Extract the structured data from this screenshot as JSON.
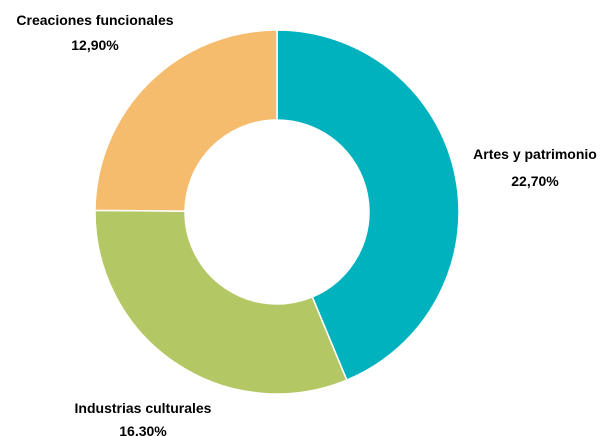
{
  "chart_data": {
    "type": "pie",
    "donut": true,
    "legend": "none",
    "categories": [
      "Artes y patrimonio",
      "Industrias culturales",
      "Creaciones funcionales"
    ],
    "values": [
      22.7,
      16.3,
      12.9
    ],
    "value_labels": [
      "22,70%",
      "16,30%",
      "12,90%"
    ],
    "colors": [
      "#00B2BE",
      "#B3C865",
      "#F6BC6D"
    ]
  }
}
